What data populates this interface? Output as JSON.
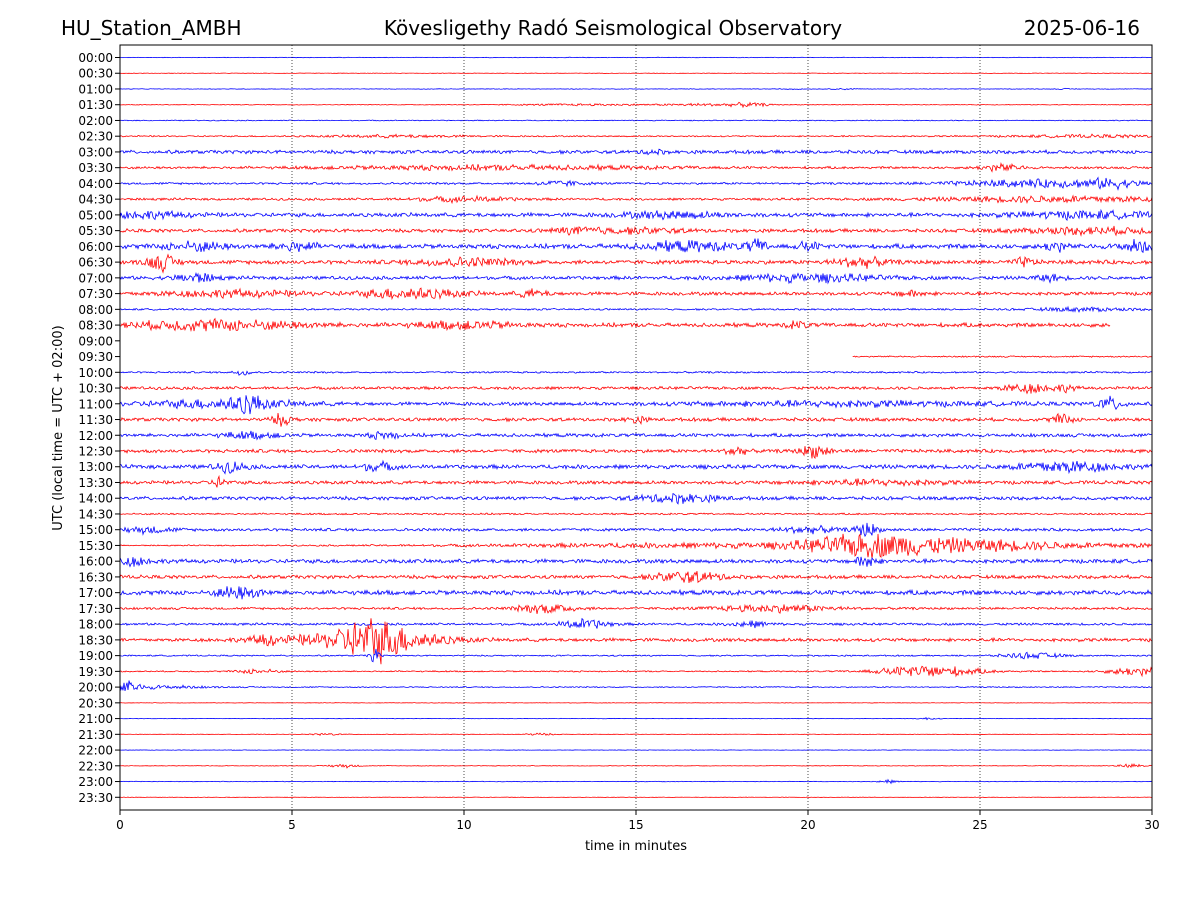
{
  "header": {
    "left": "HU_Station_AMBH",
    "center": "Kövesligethy Radó Seismological Observatory",
    "right": "2025-06-16"
  },
  "chart_data": {
    "type": "line",
    "xlabel": "time in minutes",
    "ylabel": "UTC (local time = UTC + 02:00)",
    "xlim": [
      0,
      30
    ],
    "xticks": [
      0,
      5,
      10,
      15,
      20,
      25,
      30
    ],
    "x_gridlines": [
      5,
      10,
      15,
      20,
      25
    ],
    "colors": [
      "#0000ff",
      "#ff0000"
    ],
    "rows": [
      {
        "label": "00:00",
        "level": 0.05,
        "span": [
          0,
          30
        ],
        "events": []
      },
      {
        "label": "00:30",
        "level": 0.04,
        "span": [
          0,
          30
        ],
        "events": []
      },
      {
        "label": "01:00",
        "level": 0.05,
        "span": [
          0,
          30
        ],
        "events": [
          [
            19.5,
            0.2,
            0.08
          ],
          [
            21.1,
            0.25,
            0.1
          ],
          [
            27.5,
            0.2,
            0.08
          ]
        ]
      },
      {
        "label": "01:30",
        "level": 0.06,
        "span": [
          0,
          30
        ],
        "events": [
          [
            13.5,
            1.5,
            0.15
          ],
          [
            17.0,
            0.8,
            0.2
          ],
          [
            18.3,
            0.4,
            0.3
          ]
        ]
      },
      {
        "label": "02:00",
        "level": 0.08,
        "span": [
          0,
          30
        ],
        "events": []
      },
      {
        "label": "02:30",
        "level": 0.12,
        "span": [
          0,
          30
        ],
        "events": [
          [
            8.0,
            1.5,
            0.2
          ],
          [
            28.5,
            2.0,
            0.2
          ]
        ]
      },
      {
        "label": "03:00",
        "level": 0.3,
        "span": [
          0,
          30
        ],
        "events": [
          [
            15.5,
            0.2,
            0.4
          ]
        ]
      },
      {
        "label": "03:30",
        "level": 0.2,
        "span": [
          0,
          30
        ],
        "events": [
          [
            11.0,
            3.5,
            0.35
          ],
          [
            25.6,
            0.4,
            0.6
          ]
        ]
      },
      {
        "label": "04:00",
        "level": 0.18,
        "span": [
          0,
          30
        ],
        "events": [
          [
            12.8,
            0.5,
            0.4
          ],
          [
            27.0,
            2.0,
            0.6
          ],
          [
            28.8,
            0.4,
            0.5
          ]
        ]
      },
      {
        "label": "04:30",
        "level": 0.2,
        "span": [
          0,
          30
        ],
        "events": [
          [
            10.0,
            1.0,
            0.4
          ],
          [
            27.5,
            2.5,
            0.5
          ]
        ]
      },
      {
        "label": "05:00",
        "level": 0.35,
        "span": [
          0,
          30
        ],
        "events": [
          [
            0.5,
            1.0,
            0.5
          ],
          [
            16.0,
            1.0,
            0.5
          ],
          [
            28.0,
            1.5,
            0.5
          ]
        ]
      },
      {
        "label": "05:30",
        "level": 0.3,
        "span": [
          0,
          30
        ],
        "events": [
          [
            13.3,
            0.5,
            0.5
          ],
          [
            15.0,
            1.0,
            0.4
          ],
          [
            28.3,
            1.5,
            0.5
          ]
        ]
      },
      {
        "label": "06:00",
        "level": 0.4,
        "span": [
          0,
          30
        ],
        "events": [
          [
            2.2,
            0.6,
            0.7
          ],
          [
            5.1,
            0.4,
            0.8
          ],
          [
            16.5,
            1.0,
            0.7
          ],
          [
            18.5,
            0.2,
            0.9
          ],
          [
            20.0,
            0.2,
            0.7
          ],
          [
            27.2,
            0.2,
            0.9
          ],
          [
            29.6,
            0.4,
            0.9
          ]
        ]
      },
      {
        "label": "06:30",
        "level": 0.35,
        "span": [
          0,
          30
        ],
        "events": [
          [
            1.2,
            0.3,
            1.3
          ],
          [
            10.0,
            1.0,
            0.6
          ],
          [
            21.5,
            0.5,
            0.8
          ],
          [
            26.3,
            0.2,
            0.7
          ]
        ]
      },
      {
        "label": "07:00",
        "level": 0.3,
        "span": [
          0,
          30
        ],
        "events": [
          [
            2.2,
            0.4,
            0.8
          ],
          [
            20.0,
            1.5,
            0.6
          ],
          [
            27.0,
            0.3,
            0.5
          ]
        ]
      },
      {
        "label": "07:30",
        "level": 0.3,
        "span": [
          0,
          30
        ],
        "events": [
          [
            3.2,
            1.5,
            0.5
          ],
          [
            8.5,
            1.0,
            0.9
          ],
          [
            12.0,
            0.3,
            0.6
          ],
          [
            23.0,
            0.3,
            0.5
          ]
        ]
      },
      {
        "label": "08:00",
        "level": 0.15,
        "span": [
          0,
          30
        ],
        "events": [
          [
            28.0,
            1.0,
            0.3
          ]
        ]
      },
      {
        "label": "08:30",
        "level": 0.35,
        "span": [
          0,
          28.8
        ],
        "events": [
          [
            2.8,
            1.8,
            0.8
          ],
          [
            10.0,
            1.0,
            0.6
          ],
          [
            19.7,
            0.2,
            0.6
          ]
        ]
      },
      {
        "label": "09:00",
        "level": 0.0,
        "span": [
          0,
          0
        ],
        "events": []
      },
      {
        "label": "09:30",
        "level": 0.12,
        "span": [
          21.3,
          30
        ],
        "events": []
      },
      {
        "label": "10:00",
        "level": 0.15,
        "span": [
          0,
          30
        ],
        "events": [
          [
            3.6,
            0.2,
            0.5
          ]
        ]
      },
      {
        "label": "10:30",
        "level": 0.25,
        "span": [
          0,
          30
        ],
        "events": [
          [
            26.4,
            0.5,
            0.8
          ],
          [
            27.5,
            0.2,
            0.5
          ]
        ]
      },
      {
        "label": "11:00",
        "level": 0.3,
        "span": [
          0,
          30
        ],
        "events": [
          [
            3.0,
            1.5,
            0.7
          ],
          [
            3.7,
            0.3,
            1.2
          ],
          [
            21.0,
            3.0,
            0.4
          ],
          [
            28.8,
            0.3,
            1.0
          ]
        ]
      },
      {
        "label": "11:30",
        "level": 0.3,
        "span": [
          0,
          30
        ],
        "events": [
          [
            4.7,
            0.2,
            0.9
          ],
          [
            15.0,
            0.2,
            0.5
          ],
          [
            27.4,
            0.2,
            0.9
          ]
        ]
      },
      {
        "label": "12:00",
        "level": 0.3,
        "span": [
          0,
          30
        ],
        "events": [
          [
            3.8,
            0.6,
            0.5
          ],
          [
            7.7,
            0.3,
            0.6
          ]
        ]
      },
      {
        "label": "12:30",
        "level": 0.3,
        "span": [
          0,
          30
        ],
        "events": [
          [
            17.9,
            0.2,
            0.8
          ],
          [
            20.2,
            0.3,
            1.0
          ]
        ]
      },
      {
        "label": "13:00",
        "level": 0.35,
        "span": [
          0,
          30
        ],
        "events": [
          [
            3.2,
            0.3,
            0.8
          ],
          [
            7.5,
            0.3,
            0.7
          ],
          [
            27.5,
            1.0,
            0.9
          ]
        ]
      },
      {
        "label": "13:30",
        "level": 0.3,
        "span": [
          0,
          30
        ],
        "events": [
          [
            2.9,
            0.15,
            0.9
          ],
          [
            22.0,
            1.5,
            0.4
          ]
        ]
      },
      {
        "label": "14:00",
        "level": 0.3,
        "span": [
          0,
          30
        ],
        "events": [
          [
            16.2,
            0.8,
            0.7
          ]
        ]
      },
      {
        "label": "14:30",
        "level": 0.15,
        "span": [
          0,
          30
        ],
        "events": []
      },
      {
        "label": "15:00",
        "level": 0.25,
        "span": [
          0,
          30
        ],
        "events": [
          [
            0.8,
            0.5,
            0.5
          ],
          [
            20.0,
            0.6,
            0.5
          ],
          [
            21.7,
            0.2,
            1.3
          ]
        ]
      },
      {
        "label": "15:30",
        "level": 0.1,
        "span": [
          0,
          30
        ],
        "events": [
          [
            17.0,
            5.0,
            0.4
          ],
          [
            21.7,
            1.2,
            1.6
          ],
          [
            24.5,
            1.5,
            0.7
          ],
          [
            27.5,
            4.0,
            0.4
          ]
        ]
      },
      {
        "label": "16:00",
        "level": 0.35,
        "span": [
          0,
          30
        ],
        "events": [
          [
            0.3,
            0.4,
            0.7
          ],
          [
            21.7,
            0.2,
            1.2
          ]
        ]
      },
      {
        "label": "16:30",
        "level": 0.3,
        "span": [
          0,
          30
        ],
        "events": [
          [
            16.5,
            0.7,
            0.9
          ]
        ]
      },
      {
        "label": "17:00",
        "level": 0.4,
        "span": [
          0,
          30
        ],
        "events": [
          [
            3.2,
            0.3,
            0.8
          ],
          [
            3.8,
            0.3,
            0.7
          ]
        ]
      },
      {
        "label": "17:30",
        "level": 0.2,
        "span": [
          0,
          30
        ],
        "events": [
          [
            12.4,
            0.6,
            0.8
          ],
          [
            19.0,
            1.2,
            0.6
          ]
        ]
      },
      {
        "label": "18:00",
        "level": 0.2,
        "span": [
          0,
          30
        ],
        "events": [
          [
            13.5,
            0.5,
            0.8
          ],
          [
            18.3,
            0.4,
            0.5
          ]
        ]
      },
      {
        "label": "18:30",
        "level": 0.3,
        "span": [
          0,
          30
        ],
        "events": [
          [
            4.2,
            0.2,
            0.8
          ],
          [
            6.5,
            1.5,
            0.9
          ],
          [
            7.3,
            0.6,
            2.6
          ],
          [
            8.3,
            1.0,
            0.9
          ]
        ]
      },
      {
        "label": "19:00",
        "level": 0.12,
        "span": [
          0,
          30
        ],
        "events": [
          [
            7.4,
            0.1,
            1.4
          ],
          [
            26.5,
            0.6,
            0.5
          ]
        ]
      },
      {
        "label": "19:30",
        "level": 0.12,
        "span": [
          0,
          30
        ],
        "events": [
          [
            4.0,
            0.4,
            0.4
          ],
          [
            23.5,
            1.0,
            1.0
          ],
          [
            29.6,
            0.6,
            0.7
          ]
        ]
      },
      {
        "label": "20:00",
        "level": 0.1,
        "span": [
          0,
          30
        ],
        "events": [
          [
            0.2,
            0.2,
            0.9
          ],
          [
            1.0,
            1.0,
            0.3
          ]
        ]
      },
      {
        "label": "20:30",
        "level": 0.04,
        "span": [
          0,
          30
        ],
        "events": []
      },
      {
        "label": "21:00",
        "level": 0.04,
        "span": [
          0,
          30
        ],
        "events": [
          [
            23.5,
            0.2,
            0.2
          ]
        ]
      },
      {
        "label": "21:30",
        "level": 0.04,
        "span": [
          0,
          30
        ],
        "events": [
          [
            6.0,
            0.3,
            0.2
          ],
          [
            12.2,
            0.3,
            0.2
          ]
        ]
      },
      {
        "label": "22:00",
        "level": 0.04,
        "span": [
          0,
          30
        ],
        "events": []
      },
      {
        "label": "22:30",
        "level": 0.05,
        "span": [
          0,
          30
        ],
        "events": [
          [
            6.5,
            0.3,
            0.3
          ],
          [
            29.4,
            0.3,
            0.3
          ]
        ]
      },
      {
        "label": "23:00",
        "level": 0.05,
        "span": [
          0,
          30
        ],
        "events": [
          [
            22.3,
            0.2,
            0.3
          ]
        ]
      },
      {
        "label": "23:30",
        "level": 0.04,
        "span": [
          0,
          30
        ],
        "events": []
      }
    ]
  }
}
